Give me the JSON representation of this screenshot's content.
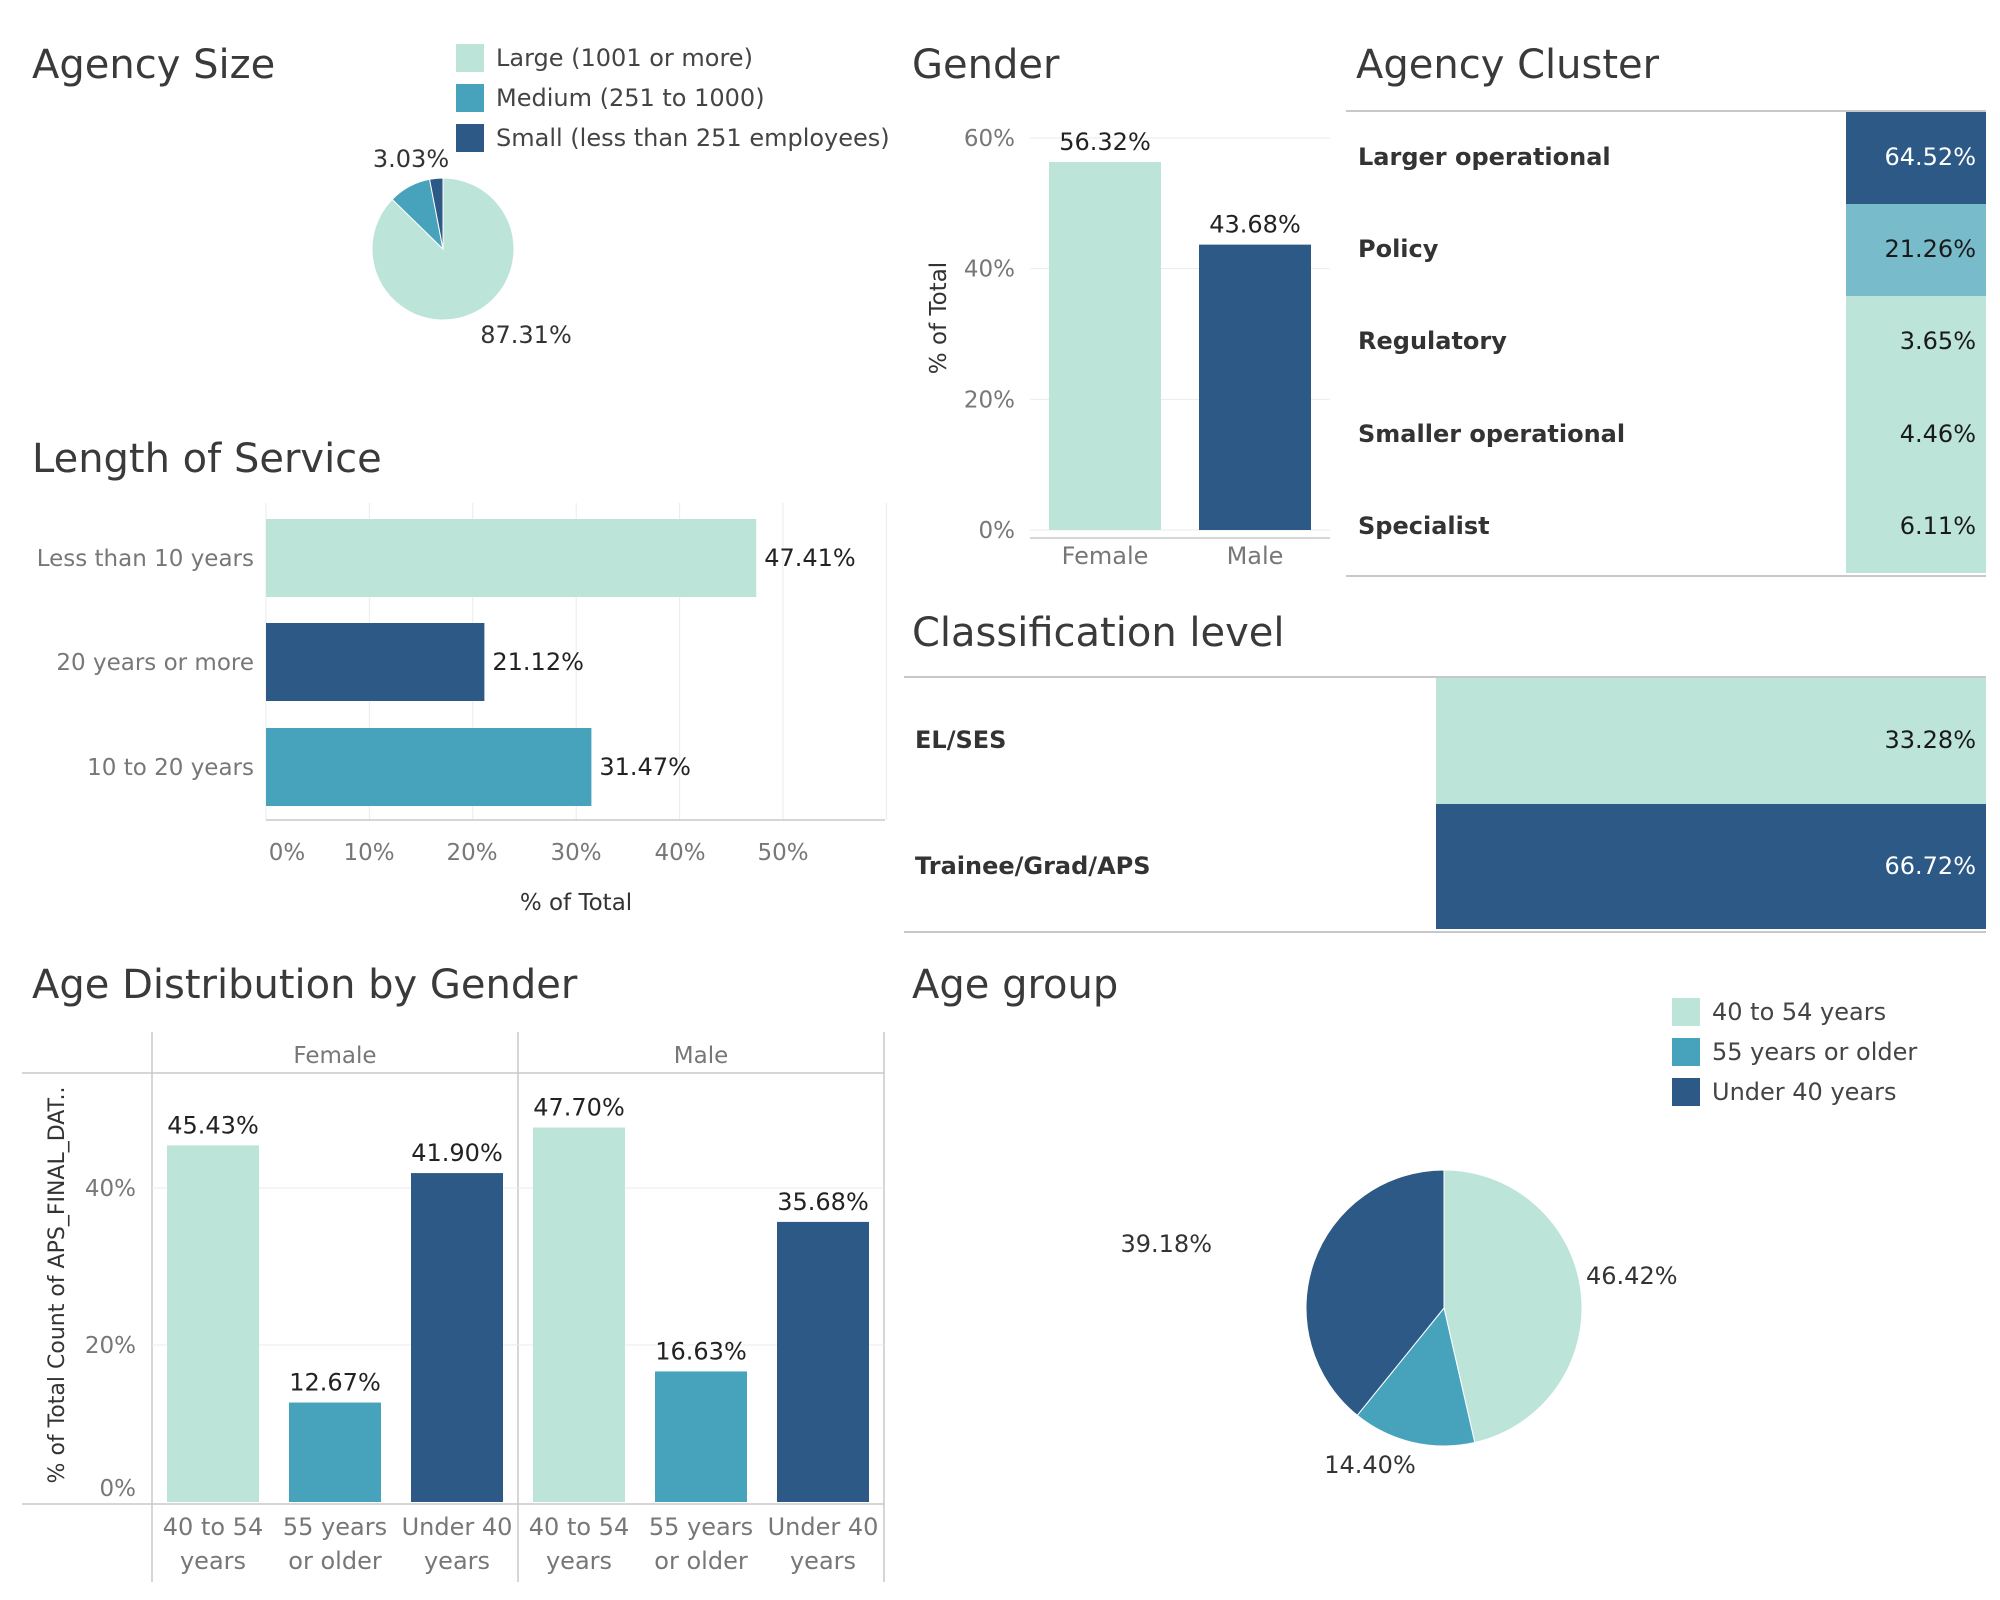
{
  "colors": {
    "light": "#bce4d8",
    "mid": "#47a3bc",
    "dark": "#2c5985",
    "policy": "#78bccb",
    "axis": "#c8c8c8",
    "grid": "#ebebeb",
    "tick": "#777777"
  },
  "agency_size": {
    "title": "Agency Size",
    "legend": [
      {
        "label": "Large (1001 or more)",
        "color": "#bce4d8"
      },
      {
        "label": "Medium (251 to 1000)",
        "color": "#47a3bc"
      },
      {
        "label": "Small (less than 251 employees)",
        "color": "#2c5985"
      }
    ]
  },
  "gender": {
    "title": "Gender"
  },
  "agency_cluster": {
    "title": "Agency Cluster"
  },
  "length_of_service": {
    "title": "Length of Service"
  },
  "classification": {
    "title": "Classification level"
  },
  "age_by_gender": {
    "title": "Age Distribution by Gender"
  },
  "age_group": {
    "title": "Age group",
    "legend": [
      {
        "label": "40 to 54 years",
        "color": "#bce4d8"
      },
      {
        "label": "55 years or older",
        "color": "#47a3bc"
      },
      {
        "label": "Under 40 years",
        "color": "#2c5985"
      }
    ]
  },
  "chart_data": [
    {
      "id": "agency_size",
      "type": "pie",
      "title": "Agency Size",
      "categories": [
        "Large (1001 or more)",
        "Medium (251 to 1000)",
        "Small (less than 251 employees)"
      ],
      "values": [
        87.31,
        9.66,
        3.03
      ],
      "data_labels": [
        "87.31%",
        "",
        "3.03%"
      ]
    },
    {
      "id": "gender",
      "type": "bar",
      "title": "Gender",
      "categories": [
        "Female",
        "Male"
      ],
      "values": [
        56.32,
        43.68
      ],
      "data_labels": [
        "56.32%",
        "43.68%"
      ],
      "ylabel": "% of Total",
      "ylim": [
        0,
        60
      ],
      "yticks": [
        "0%",
        "20%",
        "40%",
        "60%"
      ]
    },
    {
      "id": "agency_cluster",
      "type": "heatmap",
      "title": "Agency Cluster",
      "categories": [
        "Larger operational",
        "Policy",
        "Regulatory",
        "Smaller operational",
        "Specialist"
      ],
      "values": [
        64.52,
        21.26,
        3.65,
        4.46,
        6.11
      ],
      "data_labels": [
        "64.52%",
        "21.26%",
        "3.65%",
        "4.46%",
        "6.11%"
      ]
    },
    {
      "id": "length_of_service",
      "type": "bar",
      "orientation": "horizontal",
      "title": "Length of Service",
      "categories": [
        "Less than 10 years",
        "20 years or more",
        "10 to 20 years"
      ],
      "values": [
        47.41,
        21.12,
        31.47
      ],
      "data_labels": [
        "47.41%",
        "21.12%",
        "31.47%"
      ],
      "xlabel": "% of Total",
      "xlim": [
        0,
        60
      ],
      "xticks": [
        "0%",
        "10%",
        "20%",
        "30%",
        "40%",
        "50%"
      ]
    },
    {
      "id": "classification",
      "type": "heatmap",
      "title": "Classification level",
      "categories": [
        "EL/SES",
        "Trainee/Grad/APS"
      ],
      "values": [
        33.28,
        66.72
      ],
      "data_labels": [
        "33.28%",
        "66.72%"
      ]
    },
    {
      "id": "age_by_gender",
      "type": "bar",
      "title": "Age Distribution by Gender",
      "panels": [
        "Female",
        "Male"
      ],
      "categories": [
        "40 to 54 years",
        "55 years or older",
        "Under 40 years"
      ],
      "category_lines": [
        [
          "40 to 54",
          "years"
        ],
        [
          "55 years",
          "or older"
        ],
        [
          "Under 40",
          "years"
        ]
      ],
      "series": [
        {
          "name": "Female",
          "values": [
            45.43,
            12.67,
            41.9
          ],
          "data_labels": [
            "45.43%",
            "12.67%",
            "41.90%"
          ]
        },
        {
          "name": "Male",
          "values": [
            47.7,
            16.63,
            35.68
          ],
          "data_labels": [
            "47.70%",
            "16.63%",
            "35.68%"
          ]
        }
      ],
      "ylabel": "% of Total Count of APS_FINAL_DAT..",
      "ylim": [
        0,
        52
      ],
      "yticks": [
        "0%",
        "20%",
        "40%"
      ]
    },
    {
      "id": "age_group",
      "type": "pie",
      "title": "Age group",
      "categories": [
        "40 to 54 years",
        "55 years or older",
        "Under 40 years"
      ],
      "values": [
        46.42,
        14.4,
        39.18
      ],
      "data_labels": [
        "46.42%",
        "14.40%",
        "39.18%"
      ]
    }
  ]
}
